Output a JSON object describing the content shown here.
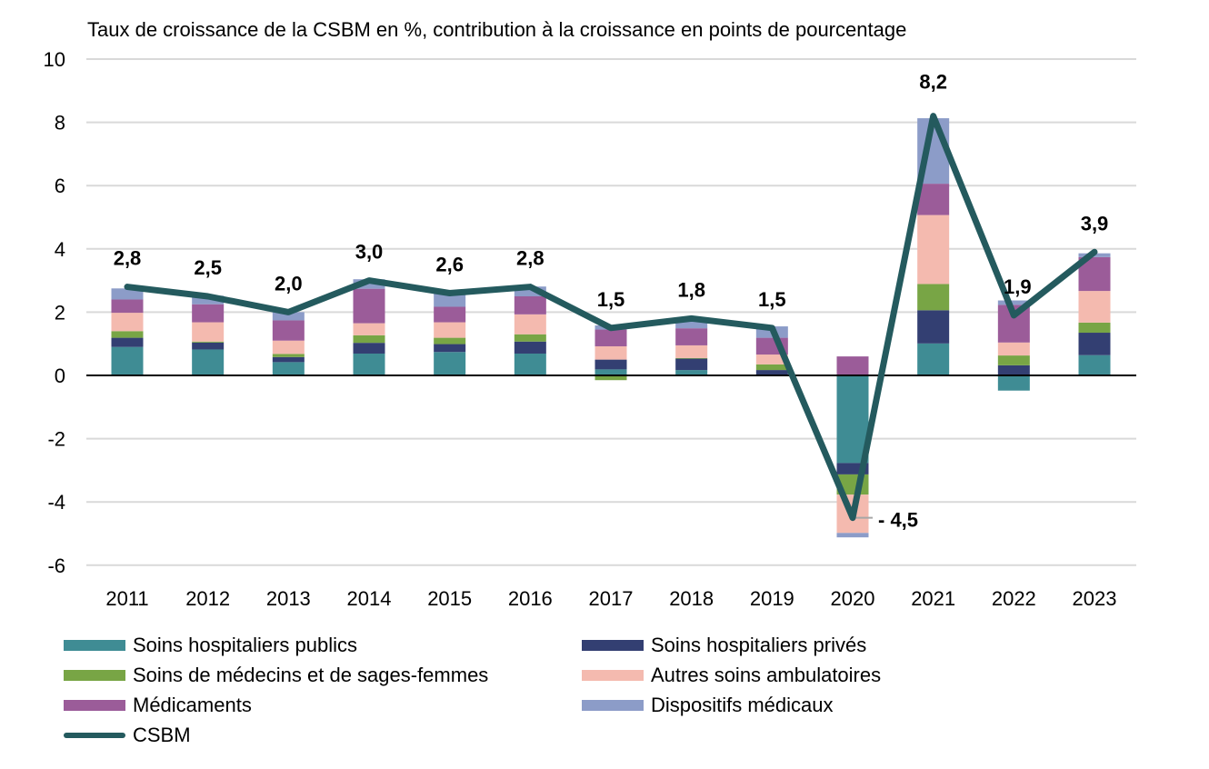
{
  "chart_data": {
    "type": "bar",
    "stacked": true,
    "title": "Taux de croissance de la CSBM en %, contribution à la croissance en points de pourcentage",
    "xlabel": "",
    "ylabel": "",
    "ylim": [
      -6,
      10
    ],
    "yticks": [
      -6,
      -4,
      -2,
      0,
      2,
      4,
      6,
      8,
      10
    ],
    "grid": true,
    "legend_position": "bottom",
    "categories": [
      "2011",
      "2012",
      "2013",
      "2014",
      "2015",
      "2016",
      "2017",
      "2018",
      "2019",
      "2020",
      "2021",
      "2022",
      "2023"
    ],
    "series": [
      {
        "name": "Soins hospitaliers publics",
        "color": "#3F8C94",
        "values": [
          0.9,
          0.82,
          0.42,
          0.69,
          0.74,
          0.69,
          0.19,
          0.17,
          0.02,
          -2.77,
          1.01,
          -0.48,
          0.64
        ]
      },
      {
        "name": "Soins hospitaliers privés",
        "color": "#333F72",
        "values": [
          0.29,
          0.22,
          0.16,
          0.34,
          0.25,
          0.38,
          0.31,
          0.36,
          0.15,
          -0.36,
          1.05,
          0.32,
          0.71
        ]
      },
      {
        "name": "Soins de médecins et de sages-femmes",
        "color": "#78A545",
        "values": [
          0.21,
          0.03,
          0.1,
          0.24,
          0.2,
          0.23,
          -0.15,
          0.02,
          0.18,
          -0.64,
          0.83,
          0.31,
          0.32
        ]
      },
      {
        "name": "Autres soins ambulatoires",
        "color": "#F4BAAF",
        "values": [
          0.58,
          0.61,
          0.42,
          0.38,
          0.49,
          0.63,
          0.42,
          0.4,
          0.31,
          -1.21,
          2.18,
          0.41,
          1.0
        ]
      },
      {
        "name": "Médicaments",
        "color": "#9B5C99",
        "values": [
          0.42,
          0.57,
          0.64,
          1.09,
          0.49,
          0.57,
          0.53,
          0.54,
          0.53,
          0.6,
          0.99,
          1.19,
          1.07
        ]
      },
      {
        "name": "Dispositifs médicaux",
        "color": "#8C9CC8",
        "values": [
          0.35,
          0.27,
          0.26,
          0.3,
          0.43,
          0.31,
          0.13,
          0.25,
          0.36,
          -0.14,
          2.07,
          0.14,
          0.12
        ]
      }
    ],
    "line": {
      "name": "CSBM",
      "color": "#245A5E",
      "values": [
        2.8,
        2.5,
        2.0,
        3.0,
        2.6,
        2.8,
        1.5,
        1.8,
        1.5,
        -4.5,
        8.2,
        1.9,
        3.9
      ],
      "labels": [
        "2,8",
        "2,5",
        "2,0",
        "3,0",
        "2,6",
        "2,8",
        "1,5",
        "1,8",
        "1,5",
        "- 4,5",
        "8,2",
        "1,9",
        "3,9"
      ]
    }
  }
}
